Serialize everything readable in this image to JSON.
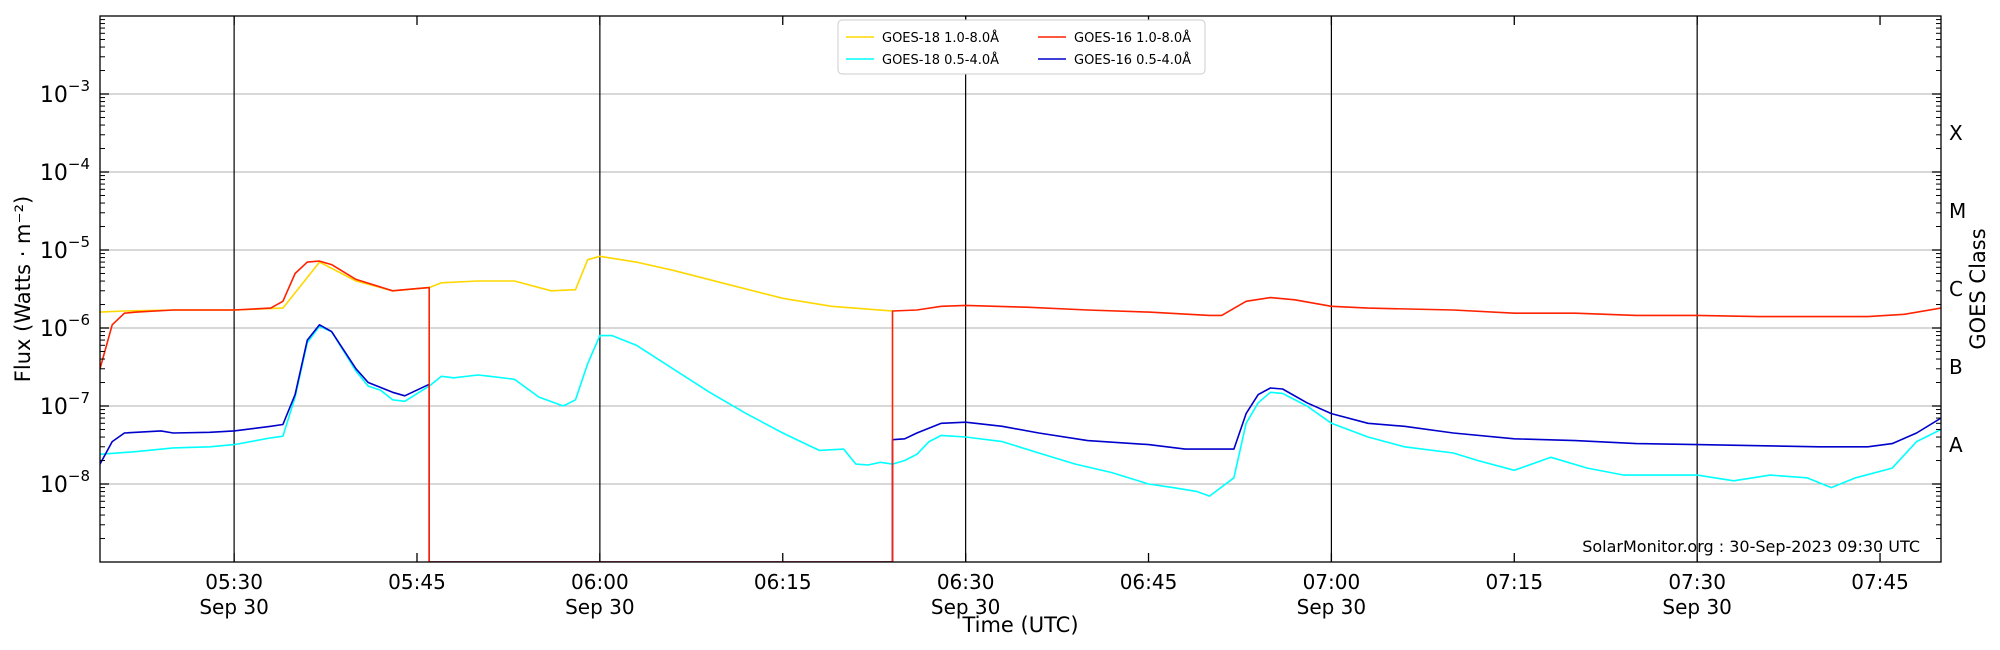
{
  "chart_data": {
    "type": "line",
    "xlabel": "Time (UTC)",
    "ylabel": "Flux (Watts · m⁻²)",
    "ylabel_right": "GOES Class",
    "y_scale": "log",
    "ylim": [
      1e-09,
      0.01
    ],
    "xlim": [
      "05:19:00",
      "07:50:00"
    ],
    "grid": "horizontal at decades, vertical at half-hours",
    "legend_location": "top-center",
    "credit": "SolarMonitor.org : 30-Sep-2023 09:30 UTC",
    "y_tick_labels": [
      {
        "value": 1e-08,
        "base": "10",
        "exp": "−8"
      },
      {
        "value": 1e-07,
        "base": "10",
        "exp": "−7"
      },
      {
        "value": 1e-06,
        "base": "10",
        "exp": "−6"
      },
      {
        "value": 1e-05,
        "base": "10",
        "exp": "−5"
      },
      {
        "value": 0.0001,
        "base": "10",
        "exp": "−4"
      },
      {
        "value": 0.001,
        "base": "10",
        "exp": "−3"
      }
    ],
    "x_ticks": [
      {
        "t": "05:30",
        "label": "05:30",
        "date": "Sep 30"
      },
      {
        "t": "05:45",
        "label": "05:45",
        "date": ""
      },
      {
        "t": "06:00",
        "label": "06:00",
        "date": "Sep 30"
      },
      {
        "t": "06:15",
        "label": "06:15",
        "date": ""
      },
      {
        "t": "06:30",
        "label": "06:30",
        "date": "Sep 30"
      },
      {
        "t": "06:45",
        "label": "06:45",
        "date": ""
      },
      {
        "t": "07:00",
        "label": "07:00",
        "date": "Sep 30"
      },
      {
        "t": "07:15",
        "label": "07:15",
        "date": ""
      },
      {
        "t": "07:30",
        "label": "07:30",
        "date": "Sep 30"
      },
      {
        "t": "07:45",
        "label": "07:45",
        "date": ""
      }
    ],
    "goes_classes": [
      {
        "label": "A",
        "lo": 1e-08,
        "hi": 1e-07
      },
      {
        "label": "B",
        "lo": 1e-07,
        "hi": 1e-06
      },
      {
        "label": "C",
        "lo": 1e-06,
        "hi": 1e-05
      },
      {
        "label": "M",
        "lo": 1e-05,
        "hi": 0.0001
      },
      {
        "label": "X",
        "lo": 0.0001,
        "hi": 0.001
      }
    ],
    "series": [
      {
        "name": "GOES-18 1.0-8.0Å",
        "color": "#ffd700",
        "points": [
          [
            "05:19",
            "1.6e-6"
          ],
          [
            "05:21",
            "1.65e-6"
          ],
          [
            "05:25",
            "1.7e-6"
          ],
          [
            "05:30",
            "1.7e-6"
          ],
          [
            "05:34",
            "1.8e-6"
          ],
          [
            "05:37",
            "7e-6"
          ],
          [
            "05:40",
            "4e-6"
          ],
          [
            "05:43",
            "3.0e-6"
          ],
          [
            "05:46",
            "3.3e-6"
          ],
          [
            "05:47",
            "3.8e-6"
          ],
          [
            "05:50",
            "4.0e-6"
          ],
          [
            "05:53",
            "4.0e-6"
          ],
          [
            "05:56",
            "3.0e-6"
          ],
          [
            "05:58",
            "3.1e-6"
          ],
          [
            "05:59",
            "7.5e-6"
          ],
          [
            "06:00",
            "8.3e-6"
          ],
          [
            "06:03",
            "7e-6"
          ],
          [
            "06:06",
            "5.5e-6"
          ],
          [
            "06:10",
            "3.8e-6"
          ],
          [
            "06:15",
            "2.4e-6"
          ],
          [
            "06:19",
            "1.9e-6"
          ],
          [
            "06:24",
            "1.65e-6"
          ]
        ]
      },
      {
        "name": "GOES-16 1.0-8.0Å",
        "color": "#ff2200",
        "points": [
          [
            "05:19",
            "3e-7"
          ],
          [
            "05:20",
            "1.1e-6"
          ],
          [
            "05:21",
            "1.55e-6"
          ],
          [
            "05:22",
            "1.6e-6"
          ],
          [
            "05:25",
            "1.7e-6"
          ],
          [
            "05:30",
            "1.7e-6"
          ],
          [
            "05:33",
            "1.8e-6"
          ],
          [
            "05:34",
            "2.2e-6"
          ],
          [
            "05:35",
            "5e-6"
          ],
          [
            "05:36",
            "7e-6"
          ],
          [
            "05:37",
            "7.2e-6"
          ],
          [
            "05:38",
            "6.5e-6"
          ],
          [
            "05:40",
            "4.2e-6"
          ],
          [
            "05:43",
            "3.0e-6"
          ],
          [
            "05:45",
            "3.2e-6"
          ],
          [
            "05:46",
            "3.3e-6"
          ],
          [
            "05:46",
            "1e-9"
          ],
          [
            "06:24",
            "1e-9"
          ],
          [
            "06:24",
            "1.65e-6"
          ],
          [
            "06:26",
            "1.7e-6"
          ],
          [
            "06:28",
            "1.9e-6"
          ],
          [
            "06:30",
            "1.95e-6"
          ],
          [
            "06:35",
            "1.85e-6"
          ],
          [
            "06:40",
            "1.7e-6"
          ],
          [
            "06:45",
            "1.6e-6"
          ],
          [
            "06:50",
            "1.45e-6"
          ],
          [
            "06:51",
            "1.45e-6"
          ],
          [
            "06:53",
            "2.2e-6"
          ],
          [
            "06:55",
            "2.45e-6"
          ],
          [
            "06:57",
            "2.3e-6"
          ],
          [
            "07:00",
            "1.9e-6"
          ],
          [
            "07:03",
            "1.8e-6"
          ],
          [
            "07:10",
            "1.7e-6"
          ],
          [
            "07:15",
            "1.55e-6"
          ],
          [
            "07:20",
            "1.55e-6"
          ],
          [
            "07:25",
            "1.45e-6"
          ],
          [
            "07:30",
            "1.45e-6"
          ],
          [
            "07:35",
            "1.4e-6"
          ],
          [
            "07:40",
            "1.4e-6"
          ],
          [
            "07:44",
            "1.4e-6"
          ],
          [
            "07:47",
            "1.5e-6"
          ],
          [
            "07:50",
            "1.8e-6"
          ]
        ]
      },
      {
        "name": "GOES-18 0.5-4.0Å",
        "color": "#00ffff",
        "points": [
          [
            "05:19",
            "2.4e-8"
          ],
          [
            "05:22",
            "2.6e-8"
          ],
          [
            "05:25",
            "2.9e-8"
          ],
          [
            "05:28",
            "3.0e-8"
          ],
          [
            "05:30",
            "3.2e-8"
          ],
          [
            "05:33",
            "3.9e-8"
          ],
          [
            "05:34",
            "4.1e-8"
          ],
          [
            "05:35",
            "1.3e-7"
          ],
          [
            "05:36",
            "6.5e-7"
          ],
          [
            "05:37",
            "1.05e-6"
          ],
          [
            "05:38",
            "9e-7"
          ],
          [
            "05:40",
            "2.8e-7"
          ],
          [
            "05:41",
            "1.8e-7"
          ],
          [
            "05:42",
            "1.6e-7"
          ],
          [
            "05:43",
            "1.2e-7"
          ],
          [
            "05:44",
            "1.15e-7"
          ],
          [
            "05:46",
            "1.8e-7"
          ],
          [
            "05:47",
            "2.4e-7"
          ],
          [
            "05:48",
            "2.3e-7"
          ],
          [
            "05:50",
            "2.5e-7"
          ],
          [
            "05:51",
            "2.4e-7"
          ],
          [
            "05:53",
            "2.2e-7"
          ],
          [
            "05:55",
            "1.3e-7"
          ],
          [
            "05:57",
            "1.0e-7"
          ],
          [
            "05:58",
            "1.2e-7"
          ],
          [
            "05:59",
            "3.5e-7"
          ],
          [
            "06:00",
            "8e-7"
          ],
          [
            "06:01",
            "8e-7"
          ],
          [
            "06:03",
            "6e-7"
          ],
          [
            "06:06",
            "3e-7"
          ],
          [
            "06:09",
            "1.5e-7"
          ],
          [
            "06:12",
            "8e-8"
          ],
          [
            "06:15",
            "4.5e-8"
          ],
          [
            "06:17",
            "3.2e-8"
          ],
          [
            "06:18",
            "2.7e-8"
          ],
          [
            "06:20",
            "2.8e-8"
          ],
          [
            "06:21",
            "1.8e-8"
          ],
          [
            "06:22",
            "1.75e-8"
          ],
          [
            "06:23",
            "1.9e-8"
          ],
          [
            "06:24",
            "1.8e-8"
          ],
          [
            "06:25",
            "2.0e-8"
          ],
          [
            "06:26",
            "2.4e-8"
          ],
          [
            "06:27",
            "3.5e-8"
          ],
          [
            "06:28",
            "4.2e-8"
          ],
          [
            "06:30",
            "4.0e-8"
          ],
          [
            "06:33",
            "3.5e-8"
          ],
          [
            "06:36",
            "2.5e-8"
          ],
          [
            "06:39",
            "1.8e-8"
          ],
          [
            "06:42",
            "1.4e-8"
          ],
          [
            "06:45",
            "1.0e-8"
          ],
          [
            "06:47",
            "9e-9"
          ],
          [
            "06:49",
            "8e-9"
          ],
          [
            "06:50",
            "7e-9"
          ],
          [
            "06:52",
            "1.2e-8"
          ],
          [
            "06:53",
            "6e-8"
          ],
          [
            "06:54",
            "1.1e-7"
          ],
          [
            "06:55",
            "1.5e-7"
          ],
          [
            "06:56",
            "1.45e-7"
          ],
          [
            "06:58",
            "1.0e-7"
          ],
          [
            "07:00",
            "6e-8"
          ],
          [
            "07:03",
            "4e-8"
          ],
          [
            "07:06",
            "3e-8"
          ],
          [
            "07:10",
            "2.5e-8"
          ],
          [
            "07:12",
            "2e-8"
          ],
          [
            "07:15",
            "1.5e-8"
          ],
          [
            "07:18",
            "2.2e-8"
          ],
          [
            "07:21",
            "1.6e-8"
          ],
          [
            "07:24",
            "1.3e-8"
          ],
          [
            "07:27",
            "1.3e-8"
          ],
          [
            "07:30",
            "1.3e-8"
          ],
          [
            "07:33",
            "1.1e-8"
          ],
          [
            "07:36",
            "1.3e-8"
          ],
          [
            "07:39",
            "1.2e-8"
          ],
          [
            "07:41",
            "9e-9"
          ],
          [
            "07:43",
            "1.2e-8"
          ],
          [
            "07:46",
            "1.6e-8"
          ],
          [
            "07:48",
            "3.5e-8"
          ],
          [
            "07:50",
            "5e-8"
          ]
        ]
      },
      {
        "name": "GOES-16 0.5-4.0Å",
        "color": "#0000cc",
        "points": [
          [
            "05:19",
            "1.8e-8"
          ],
          [
            "05:20",
            "3.5e-8"
          ],
          [
            "05:21",
            "4.5e-8"
          ],
          [
            "05:24",
            "4.8e-8"
          ],
          [
            "05:25",
            "4.5e-8"
          ],
          [
            "05:28",
            "4.6e-8"
          ],
          [
            "05:30",
            "4.8e-8"
          ],
          [
            "05:33",
            "5.5e-8"
          ],
          [
            "05:34",
            "5.8e-8"
          ],
          [
            "05:35",
            "1.4e-7"
          ],
          [
            "05:36",
            "7e-7"
          ],
          [
            "05:37",
            "1.1e-6"
          ],
          [
            "05:38",
            "9e-7"
          ],
          [
            "05:40",
            "3e-7"
          ],
          [
            "05:41",
            "2.0e-7"
          ],
          [
            "05:43",
            "1.5e-7"
          ],
          [
            "05:44",
            "1.35e-7"
          ],
          [
            "05:46",
            "1.9e-7"
          ],
          [
            "05:46",
            "1e-9"
          ],
          [
            "06:24",
            "1e-9"
          ],
          [
            "06:24",
            "3.7e-8"
          ],
          [
            "06:25",
            "3.8e-8"
          ],
          [
            "06:26",
            "4.5e-8"
          ],
          [
            "06:28",
            "6.0e-8"
          ],
          [
            "06:30",
            "6.2e-8"
          ],
          [
            "06:33",
            "5.5e-8"
          ],
          [
            "06:36",
            "4.5e-8"
          ],
          [
            "06:40",
            "3.6e-8"
          ],
          [
            "06:45",
            "3.2e-8"
          ],
          [
            "06:48",
            "2.8e-8"
          ],
          [
            "06:52",
            "2.8e-8"
          ],
          [
            "06:53",
            "8e-8"
          ],
          [
            "06:54",
            "1.4e-7"
          ],
          [
            "06:55",
            "1.7e-7"
          ],
          [
            "06:56",
            "1.65e-7"
          ],
          [
            "06:58",
            "1.1e-7"
          ],
          [
            "07:00",
            "8e-8"
          ],
          [
            "07:03",
            "6e-8"
          ],
          [
            "07:06",
            "5.5e-8"
          ],
          [
            "07:10",
            "4.5e-8"
          ],
          [
            "07:15",
            "3.8e-8"
          ],
          [
            "07:20",
            "3.6e-8"
          ],
          [
            "07:25",
            "3.3e-8"
          ],
          [
            "07:30",
            "3.2e-8"
          ],
          [
            "07:35",
            "3.1e-8"
          ],
          [
            "07:40",
            "3.0e-8"
          ],
          [
            "07:44",
            "3.0e-8"
          ],
          [
            "07:46",
            "3.3e-8"
          ],
          [
            "07:48",
            "4.5e-8"
          ],
          [
            "07:50",
            "7e-8"
          ]
        ]
      }
    ]
  }
}
